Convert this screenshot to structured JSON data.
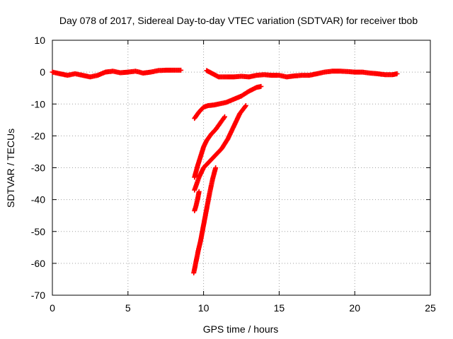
{
  "chart_data": {
    "type": "scatter",
    "title": "Day 078 of 2017, Sidereal Day-to-day VTEC variation (SDTVAR) for receiver tbob",
    "xlabel": "GPS time / hours",
    "ylabel": "SDTVAR / TECUs",
    "xlim": [
      0,
      25
    ],
    "ylim": [
      -70,
      10
    ],
    "xticks": [
      0,
      5,
      10,
      15,
      20,
      25
    ],
    "yticks": [
      10,
      0,
      -10,
      -20,
      -30,
      -40,
      -50,
      -60,
      -70
    ],
    "grid": true,
    "grid_style": "dotted",
    "marker": "+",
    "color": "#ff0000",
    "series": [
      {
        "x": [
          0.0,
          0.5,
          1.0,
          1.5,
          2.0,
          2.5,
          3.0,
          3.5,
          4.0,
          4.5,
          5.0,
          5.5,
          6.0,
          6.5,
          7.0,
          7.5,
          8.0,
          8.5
        ],
        "y": [
          0.0,
          -0.5,
          -1.0,
          -0.5,
          -1.0,
          -1.5,
          -1.0,
          0.0,
          0.3,
          -0.2,
          0.0,
          0.3,
          -0.3,
          0.0,
          0.5,
          0.6,
          0.6,
          0.6
        ]
      },
      {
        "x": [
          10.2,
          10.6,
          11.0,
          11.5,
          12.0,
          12.5,
          13.0,
          13.5,
          14.0,
          14.5,
          15.0,
          15.5,
          16.0,
          16.5,
          17.0,
          17.5,
          18.0,
          18.5,
          19.0,
          19.5,
          20.0,
          20.5,
          21.0,
          21.5,
          22.0,
          22.5,
          22.8
        ],
        "y": [
          0.5,
          -0.5,
          -1.5,
          -1.5,
          -1.5,
          -1.3,
          -1.5,
          -1.0,
          -0.8,
          -1.0,
          -1.0,
          -1.5,
          -1.2,
          -1.0,
          -1.0,
          -0.5,
          0.0,
          0.3,
          0.3,
          0.2,
          0.0,
          0.0,
          -0.3,
          -0.5,
          -0.8,
          -0.8,
          -0.5
        ]
      },
      {
        "x": [
          9.4,
          9.7,
          10.0,
          10.3,
          10.7,
          11.0,
          11.5,
          12.0,
          12.5,
          13.0,
          13.5,
          13.8
        ],
        "y": [
          -14.5,
          -12.5,
          -11.0,
          -10.5,
          -10.3,
          -10.0,
          -9.5,
          -8.5,
          -7.5,
          -6.0,
          -4.8,
          -4.5
        ]
      },
      {
        "x": [
          9.4,
          9.6,
          9.8,
          10.0,
          10.2,
          10.5,
          10.8,
          11.1,
          11.4
        ],
        "y": [
          -33.0,
          -29.5,
          -26.5,
          -23.5,
          -21.5,
          -19.5,
          -18.0,
          -16.0,
          -14.0
        ]
      },
      {
        "x": [
          9.4,
          9.7,
          10.0,
          10.4,
          10.8,
          11.2,
          11.6,
          12.0,
          12.4,
          12.8
        ],
        "y": [
          -37.0,
          -33.0,
          -30.0,
          -28.0,
          -26.0,
          -24.0,
          -21.0,
          -17.0,
          -13.0,
          -10.5
        ]
      },
      {
        "x": [
          9.4,
          9.5,
          9.6,
          9.7
        ],
        "y": [
          -43.5,
          -42.0,
          -40.0,
          -37.5
        ]
      },
      {
        "x": [
          9.35,
          9.5,
          9.65,
          9.8,
          10.0,
          10.2,
          10.4,
          10.6,
          10.8
        ],
        "y": [
          -63.0,
          -59.5,
          -56.0,
          -53.0,
          -48.0,
          -43.0,
          -38.0,
          -33.5,
          -30.0
        ]
      }
    ]
  }
}
